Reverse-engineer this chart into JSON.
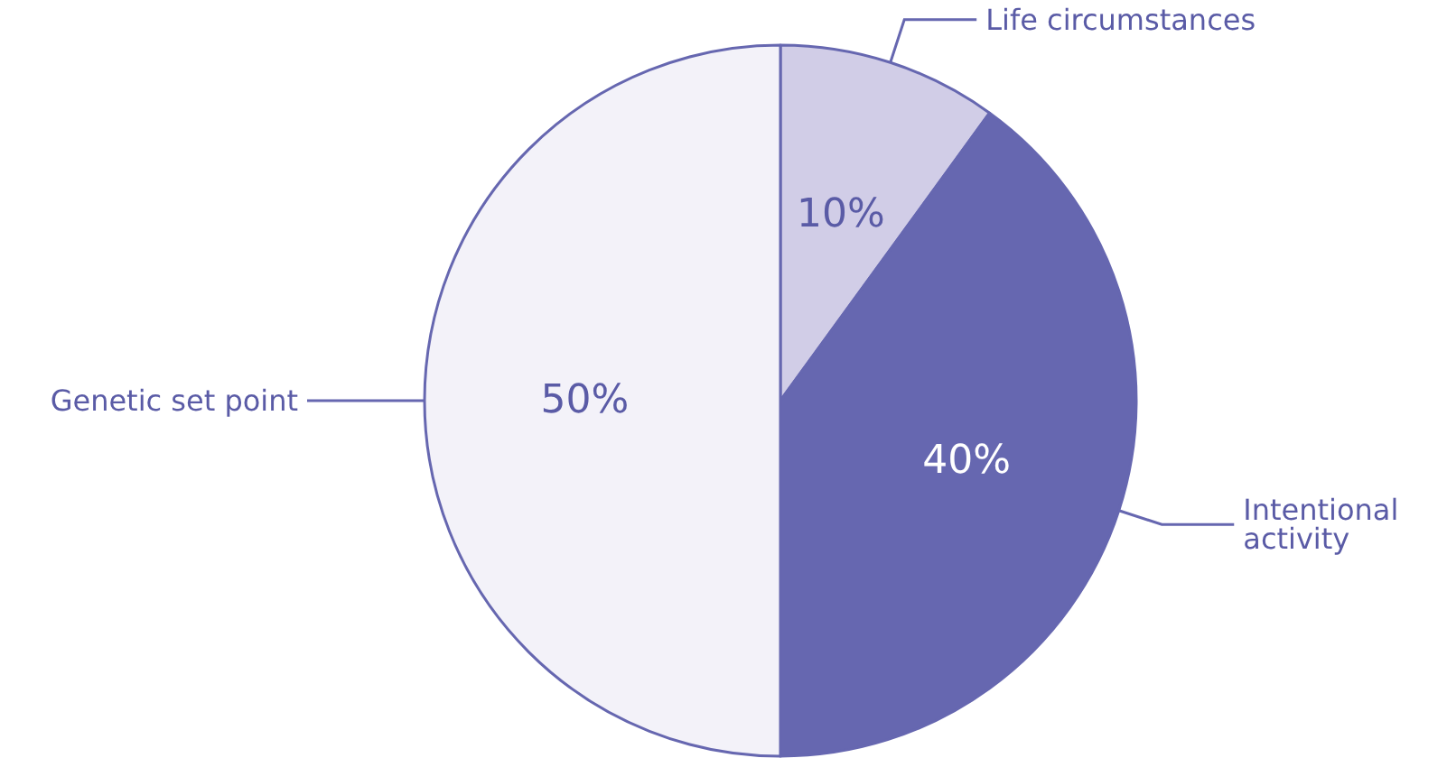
{
  "chart_data": {
    "type": "pie",
    "categories": [
      "Life circumstances",
      "Intentional activity",
      "Genetic set point"
    ],
    "values": [
      10,
      40,
      50
    ],
    "colors": [
      "#d1cde7",
      "#6667b0",
      "#f3f2f9"
    ],
    "value_labels": [
      "10%",
      "40%",
      "50%"
    ],
    "legend": false
  }
}
